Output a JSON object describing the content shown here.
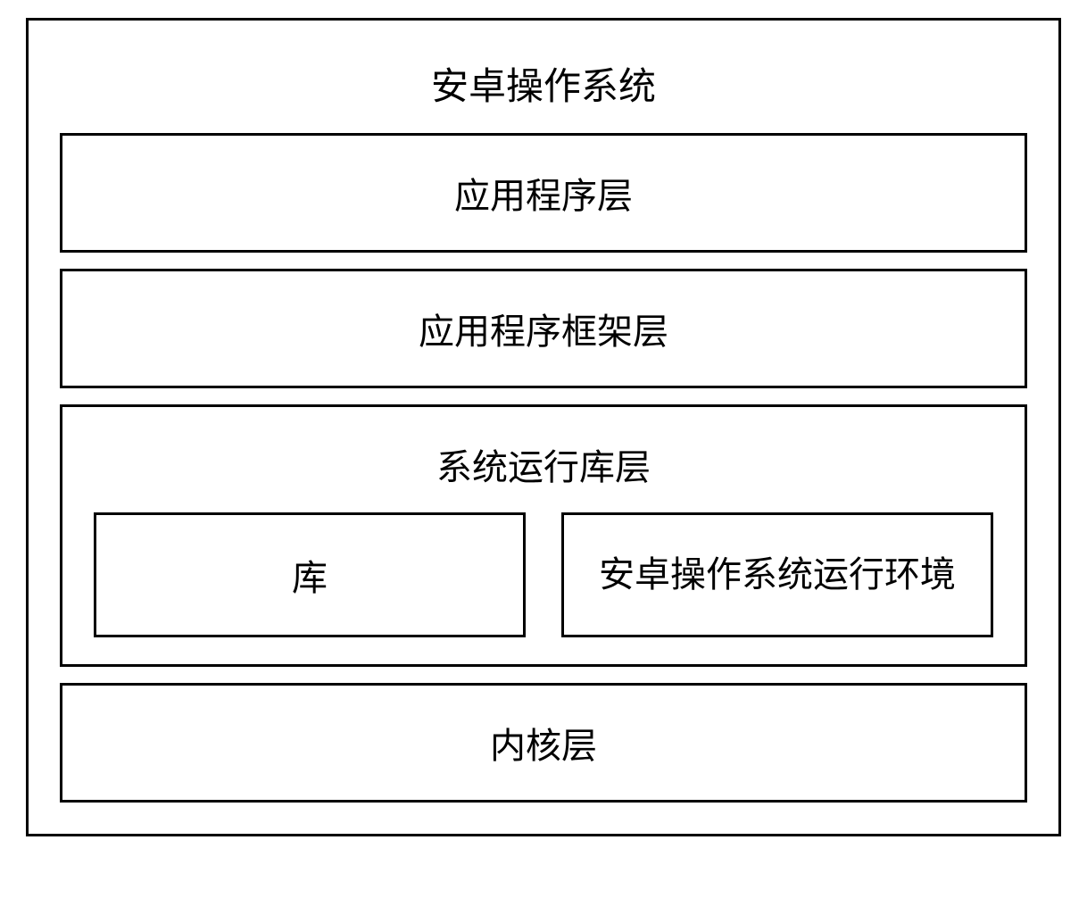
{
  "diagram": {
    "type": "layered-architecture",
    "title": "安卓操作系统",
    "background_color": "#ffffff",
    "border_color": "#000000",
    "border_width": 3,
    "text_color": "#000000",
    "font_family": "KaiTi",
    "title_fontsize": 42,
    "layer_fontsize": 40,
    "layers": [
      {
        "label": "应用程序层",
        "type": "simple"
      },
      {
        "label": "应用程序框架层",
        "type": "simple"
      },
      {
        "label": "系统运行库层",
        "type": "composite",
        "sub_boxes": [
          {
            "label": "库"
          },
          {
            "label": "安卓操作系统运行环境"
          }
        ]
      },
      {
        "label": "内核层",
        "type": "simple"
      }
    ]
  }
}
